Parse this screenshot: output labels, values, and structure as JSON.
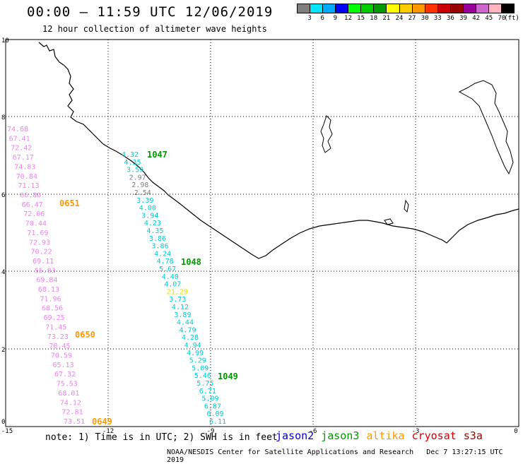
{
  "header": {
    "title": "00:00 — 11:59 UTC 12/06/2019",
    "subtitle": "12 hour collection of altimeter wave heights"
  },
  "colorbar": {
    "colors": [
      "#7f7f7f",
      "#00e5ff",
      "#00aaff",
      "#0000ff",
      "#00ff00",
      "#00cc00",
      "#009900",
      "#ffff00",
      "#ffcc00",
      "#ff9900",
      "#ff3300",
      "#cc0000",
      "#990000",
      "#990099",
      "#cc66cc",
      "#ffb6c1",
      "#000000"
    ],
    "labels": [
      "3",
      "6",
      "9",
      "12",
      "15",
      "18",
      "21",
      "24",
      "27",
      "30",
      "33",
      "36",
      "39",
      "42",
      "45",
      "70"
    ],
    "unit": "(ft)"
  },
  "axes": {
    "y_ticks": [
      "10",
      "8",
      "6",
      "4",
      "2",
      "0"
    ],
    "x_ticks": [
      "-15",
      "-12",
      "-9",
      "-6",
      "-3",
      "0"
    ]
  },
  "tracks": {
    "pink": {
      "color": "#ee82ee",
      "values": [
        "74.68",
        "67.41",
        "72.42",
        "67.17",
        "74.83",
        "70.84",
        "71.13",
        "66.80",
        "66.47",
        "72.06",
        "70.44",
        "71.69",
        "72.93",
        "70.22",
        "69.11",
        "55.83",
        "69.84",
        "68.13",
        "71.96",
        "68.56",
        "69.25",
        "71.45",
        "73.23",
        "70.45",
        "70.59",
        "65.13",
        "67.32",
        "75.53",
        "68.01",
        "74.12",
        "72.81",
        "73.51"
      ]
    },
    "cyan": {
      "color": "#00cccc",
      "values": [
        "4.32",
        "4.35",
        "3.59",
        "2.97",
        "2.98",
        "2.54",
        "3.39",
        "4.00",
        "3.94",
        "4.23",
        "4.35",
        "3.86",
        "3.86",
        "4.24",
        "4.78",
        "5.67",
        "4.40",
        "4.07",
        "21.29",
        "3.73",
        "4.12",
        "3.89",
        "4.44",
        "4.79",
        "4.28",
        "4.94",
        "4.99",
        "5.29",
        "5.09",
        "5.46",
        "5.75",
        "6.71",
        "5.09",
        "6.87",
        "6.09",
        "6.11"
      ]
    }
  },
  "times": {
    "t0651": "0651",
    "t0650": "0650",
    "t0649": "0649",
    "t1047": "1047",
    "t1048": "1048",
    "t1049": "1049"
  },
  "note": "note: 1) Time is in UTC; 2) SWH is in feet",
  "satellites": [
    {
      "label": "jason2",
      "color": "#0000cc"
    },
    {
      "label": "jason3",
      "color": "#009900"
    },
    {
      "label": "altika",
      "color": "#ff9900"
    },
    {
      "label": "cryosat",
      "color": "#cc0000"
    },
    {
      "label": "s3a",
      "color": "#990000"
    }
  ],
  "footer": {
    "org": "NOAA/NESDIS Center for Satellite Applications and Research",
    "timestamp": "Dec  7 13:27:15 UTC 2019"
  }
}
